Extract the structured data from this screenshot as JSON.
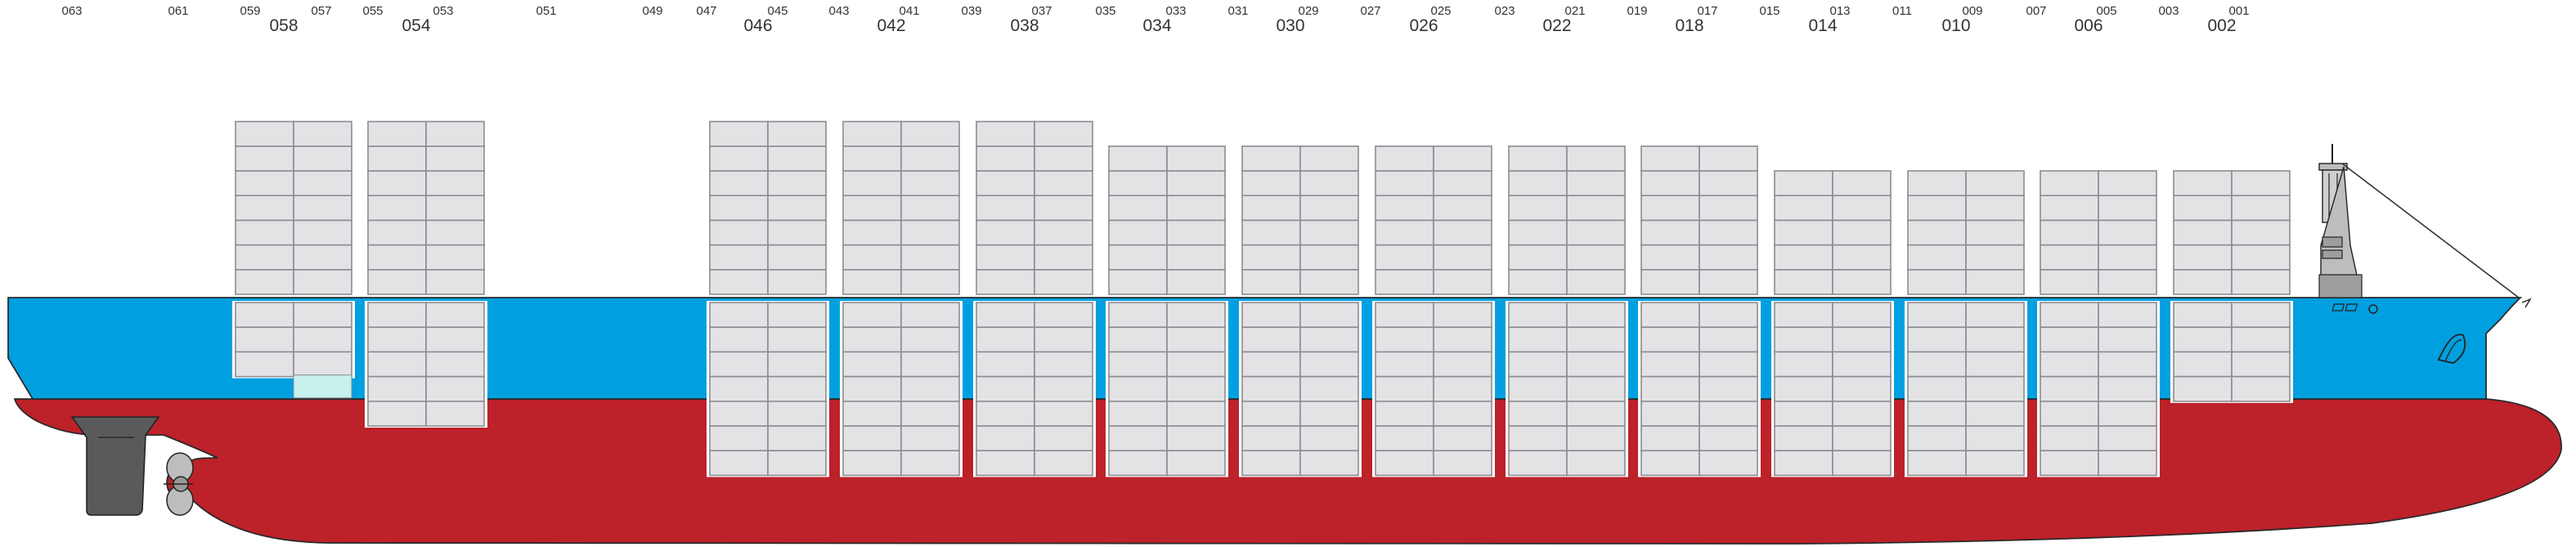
{
  "colors": {
    "hull_upper": "#00a0e0",
    "hull_lower": "#bd2129",
    "container_fill": "#e3e3e6",
    "container_stroke": "#8c8c92",
    "text": "#333333"
  },
  "bay_labels": {
    "small": [
      "063",
      "061",
      "059",
      "057",
      "055",
      "053",
      "051",
      "049",
      "047",
      "045",
      "043",
      "041",
      "039",
      "037",
      "035",
      "033",
      "031",
      "029",
      "027",
      "025",
      "023",
      "021",
      "019",
      "017",
      "015",
      "013",
      "011",
      "009",
      "007",
      "005",
      "003",
      "001"
    ],
    "big": [
      "058",
      "054",
      "046",
      "042",
      "038",
      "034",
      "030",
      "026",
      "022",
      "018",
      "014",
      "010",
      "006",
      "002"
    ]
  },
  "bays": [
    {
      "big": "058",
      "deck_tiers": 7,
      "hold_tiers": 3,
      "hold_partial": true
    },
    {
      "big": "054",
      "deck_tiers": 7,
      "hold_tiers": 5,
      "hold_partial": true
    },
    {
      "big": "046",
      "deck_tiers": 7,
      "hold_tiers": 7,
      "hold_partial": false
    },
    {
      "big": "042",
      "deck_tiers": 7,
      "hold_tiers": 7,
      "hold_partial": false
    },
    {
      "big": "038",
      "deck_tiers": 7,
      "hold_tiers": 7,
      "hold_partial": false
    },
    {
      "big": "034",
      "deck_tiers": 6,
      "hold_tiers": 7,
      "hold_partial": false
    },
    {
      "big": "030",
      "deck_tiers": 6,
      "hold_tiers": 7,
      "hold_partial": false
    },
    {
      "big": "026",
      "deck_tiers": 6,
      "hold_tiers": 7,
      "hold_partial": false
    },
    {
      "big": "022",
      "deck_tiers": 6,
      "hold_tiers": 7,
      "hold_partial": false
    },
    {
      "big": "018",
      "deck_tiers": 6,
      "hold_tiers": 7,
      "hold_partial": false
    },
    {
      "big": "014",
      "deck_tiers": 5,
      "hold_tiers": 7,
      "hold_partial": false
    },
    {
      "big": "010",
      "deck_tiers": 5,
      "hold_tiers": 7,
      "hold_partial": false
    },
    {
      "big": "006",
      "deck_tiers": 5,
      "hold_tiers": 7,
      "hold_partial": false
    },
    {
      "big": "002",
      "deck_tiers": 5,
      "hold_tiers": 4,
      "hold_partial": true
    }
  ],
  "icons": [
    "propeller-icon",
    "rudder-icon",
    "bridge-mast-icon",
    "bow-logo-icon",
    "anchor-icon"
  ]
}
